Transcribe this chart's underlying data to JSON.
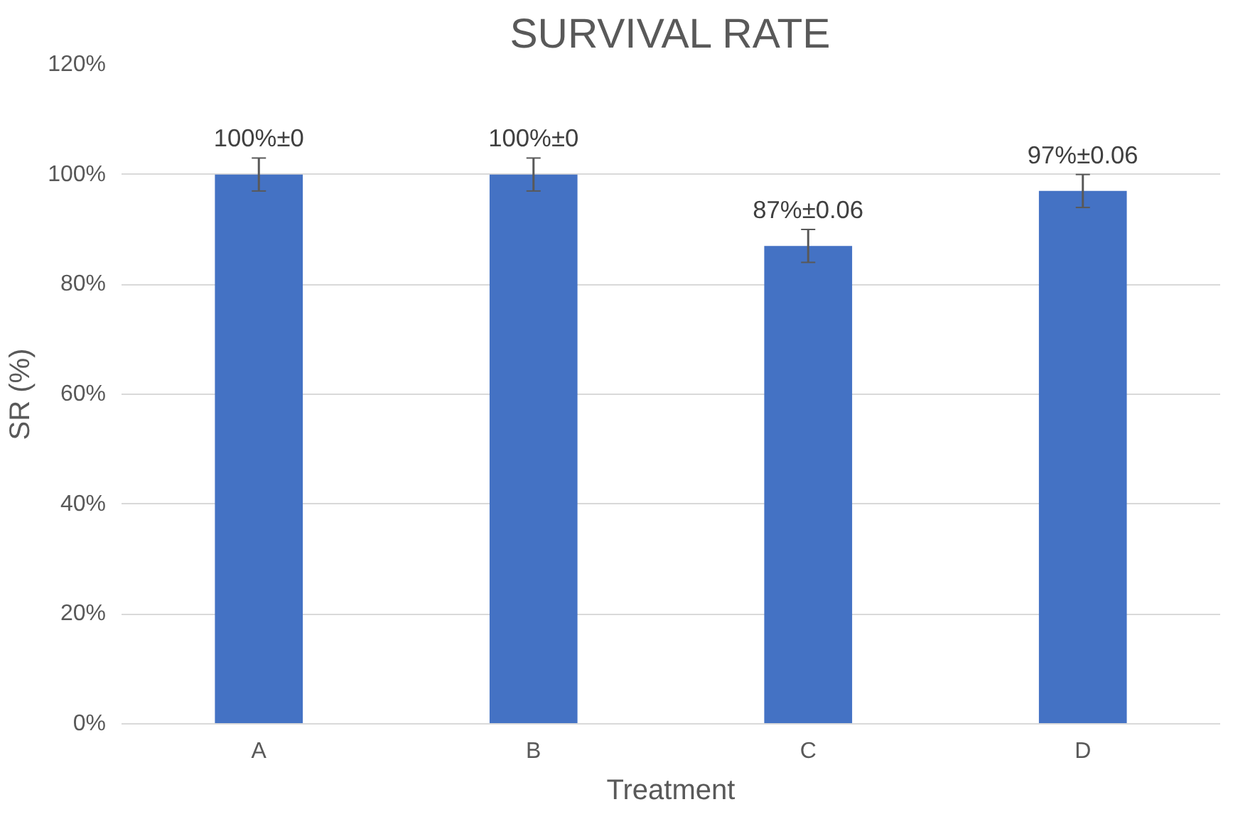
{
  "chart_data": {
    "type": "bar",
    "title": "SURVIVAL RATE",
    "xlabel": "Treatment",
    "ylabel": "SR (%)",
    "categories": [
      "A",
      "B",
      "C",
      "D"
    ],
    "values": [
      100,
      100,
      87,
      97
    ],
    "errors": [
      3,
      3,
      3,
      3
    ],
    "value_labels": [
      "100%±0",
      "100%±0",
      "87%±0.06",
      "97%±0.06"
    ],
    "color": "#4472c4",
    "ylim": [
      0,
      120
    ],
    "yticks": [
      {
        "value": 0,
        "label": "0%"
      },
      {
        "value": 20,
        "label": "20%"
      },
      {
        "value": 40,
        "label": "40%"
      },
      {
        "value": 60,
        "label": "60%"
      },
      {
        "value": 80,
        "label": "80%"
      },
      {
        "value": 100,
        "label": "100%"
      },
      {
        "value": 120,
        "label": "120%"
      }
    ],
    "grid": "y"
  }
}
